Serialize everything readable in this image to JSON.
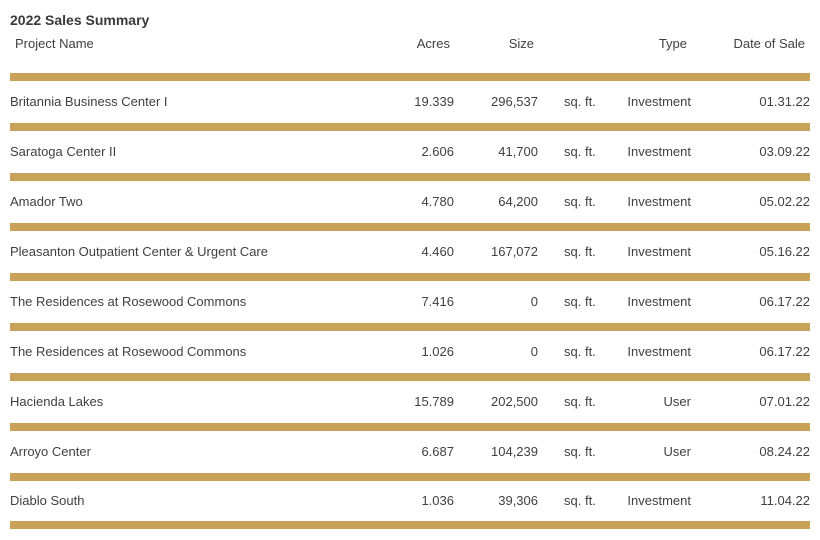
{
  "title": "2022 Sales Summary",
  "columns": {
    "project_name": "Project Name",
    "acres": "Acres",
    "size": "Size",
    "type": "Type",
    "date_of_sale": "Date of Sale"
  },
  "accent_color": "#c9a25a",
  "rows": [
    {
      "name": "Britannia Business Center I",
      "acres": "19.339",
      "size": "296,537",
      "unit": "sq. ft.",
      "type": "Investment",
      "date": "01.31.22"
    },
    {
      "name": "Saratoga Center II",
      "acres": "2.606",
      "size": "41,700",
      "unit": "sq. ft.",
      "type": "Investment",
      "date": "03.09.22"
    },
    {
      "name": "Amador Two",
      "acres": "4.780",
      "size": "64,200",
      "unit": "sq. ft.",
      "type": "Investment",
      "date": "05.02.22"
    },
    {
      "name": "Pleasanton Outpatient Center & Urgent Care",
      "acres": "4.460",
      "size": "167,072",
      "unit": "sq. ft.",
      "type": "Investment",
      "date": "05.16.22"
    },
    {
      "name": "The Residences at Rosewood Commons",
      "acres": "7.416",
      "size": "0",
      "unit": "sq. ft.",
      "type": "Investment",
      "date": "06.17.22"
    },
    {
      "name": "The Residences at Rosewood Commons",
      "acres": "1.026",
      "size": "0",
      "unit": "sq. ft.",
      "type": "Investment",
      "date": "06.17.22"
    },
    {
      "name": "Hacienda Lakes",
      "acres": "15.789",
      "size": "202,500",
      "unit": "sq. ft.",
      "type": "User",
      "date": "07.01.22"
    },
    {
      "name": "Arroyo Center",
      "acres": "6.687",
      "size": "104,239",
      "unit": "sq. ft.",
      "type": "User",
      "date": "08.24.22"
    },
    {
      "name": "Diablo South",
      "acres": "1.036",
      "size": "39,306",
      "unit": "sq. ft.",
      "type": "Investment",
      "date": "11.04.22"
    }
  ]
}
